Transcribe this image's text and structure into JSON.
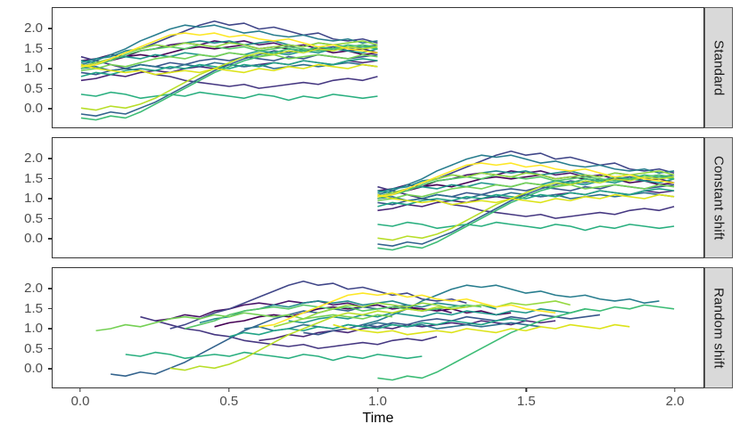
{
  "chart_data": {
    "type": "line",
    "title": "",
    "xlabel": "Time",
    "ylabel": "",
    "x_range": [
      0,
      2
    ],
    "x_ticks": [
      0.0,
      0.5,
      1.0,
      1.5,
      2.0
    ],
    "x_tick_labels": [
      "0.0",
      "0.5",
      "1.0",
      "1.5",
      "2.0"
    ],
    "y_ticks": [
      2.0,
      1.5,
      1.0,
      0.5,
      0.0
    ],
    "y_tick_labels": [
      "2.0",
      "1.5",
      "1.0",
      "0.5",
      "0.0"
    ],
    "grid": "off",
    "legend": "none",
    "facet_labels": [
      "Standard",
      "Constant shift",
      "Random shift"
    ],
    "x_step": 0.05,
    "series_colors": [
      "#440154",
      "#481467",
      "#482677",
      "#453781",
      "#404688",
      "#39568C",
      "#33638D",
      "#2D708E",
      "#287D8E",
      "#238A8D",
      "#1F968B",
      "#20A386",
      "#29AF7F",
      "#3CBC75",
      "#56C667",
      "#75D054",
      "#95D840",
      "#B8DE29",
      "#DCE319",
      "#FDE725"
    ],
    "base_series": [
      [
        1.05,
        1.15,
        1.2,
        1.3,
        1.35,
        1.3,
        1.4,
        1.5,
        1.55,
        1.5,
        1.55,
        1.6,
        1.5,
        1.55,
        1.5,
        1.45,
        1.5,
        1.4,
        1.45,
        1.35,
        1.4
      ],
      [
        1.2,
        1.25,
        1.35,
        1.3,
        1.45,
        1.5,
        1.6,
        1.65,
        1.6,
        1.7,
        1.65,
        1.7,
        1.6,
        1.65,
        1.55,
        1.6,
        1.5,
        1.55,
        1.45,
        1.5,
        1.4
      ],
      [
        0.7,
        0.75,
        0.85,
        0.8,
        0.9,
        0.95,
        0.9,
        1.0,
        1.05,
        1.0,
        1.1,
        1.05,
        1.1,
        1.15,
        1.1,
        1.2,
        1.15,
        1.1,
        1.2,
        1.15,
        1.2
      ],
      [
        1.3,
        1.2,
        1.1,
        1.0,
        0.95,
        0.85,
        0.8,
        0.7,
        0.65,
        0.6,
        0.55,
        0.6,
        0.5,
        0.55,
        0.6,
        0.65,
        0.6,
        0.7,
        0.75,
        0.7,
        0.8
      ],
      [
        1.0,
        1.1,
        1.25,
        1.4,
        1.5,
        1.65,
        1.8,
        1.95,
        2.1,
        2.2,
        2.1,
        2.15,
        2.0,
        2.05,
        1.95,
        1.85,
        1.9,
        1.75,
        1.7,
        1.75,
        1.65
      ],
      [
        0.9,
        0.85,
        0.95,
        1.0,
        1.1,
        1.05,
        1.15,
        1.1,
        1.2,
        1.25,
        1.2,
        1.3,
        1.25,
        1.2,
        1.3,
        1.25,
        1.35,
        1.3,
        1.25,
        1.3,
        1.35
      ],
      [
        -0.15,
        -0.2,
        -0.1,
        -0.15,
        0.0,
        0.15,
        0.35,
        0.55,
        0.75,
        0.95,
        1.1,
        1.25,
        1.35,
        1.45,
        1.4,
        1.5,
        1.45,
        1.55,
        1.5,
        1.55,
        1.6
      ],
      [
        1.0,
        1.05,
        0.95,
        1.0,
        1.1,
        1.05,
        1.0,
        1.1,
        1.05,
        1.15,
        1.1,
        1.05,
        1.1,
        1.0,
        1.05,
        1.1,
        1.05,
        1.1,
        1.15,
        1.1,
        1.05
      ],
      [
        1.1,
        1.2,
        1.35,
        1.5,
        1.7,
        1.85,
        2.0,
        2.1,
        2.05,
        2.1,
        2.0,
        1.9,
        1.95,
        1.85,
        1.8,
        1.85,
        1.75,
        1.7,
        1.75,
        1.65,
        1.7
      ],
      [
        1.15,
        1.25,
        1.3,
        1.45,
        1.5,
        1.6,
        1.55,
        1.65,
        1.7,
        1.65,
        1.7,
        1.6,
        1.65,
        1.7,
        1.6,
        1.55,
        1.65,
        1.6,
        1.55,
        1.6,
        1.5
      ],
      [
        1.2,
        1.15,
        1.25,
        1.3,
        1.25,
        1.35,
        1.3,
        1.4,
        1.35,
        1.3,
        1.4,
        1.35,
        1.45,
        1.4,
        1.35,
        1.45,
        1.4,
        1.5,
        1.45,
        1.4,
        1.5
      ],
      [
        0.8,
        0.9,
        0.85,
        0.95,
        1.0,
        0.95,
        1.05,
        1.0,
        1.1,
        1.05,
        1.0,
        1.1,
        1.05,
        1.15,
        1.1,
        1.2,
        1.15,
        1.1,
        1.2,
        1.25,
        1.2
      ],
      [
        0.35,
        0.3,
        0.4,
        0.35,
        0.25,
        0.3,
        0.35,
        0.3,
        0.4,
        0.35,
        0.3,
        0.25,
        0.35,
        0.3,
        0.2,
        0.3,
        0.25,
        0.35,
        0.3,
        0.25,
        0.3
      ],
      [
        -0.25,
        -0.3,
        -0.2,
        -0.25,
        -0.1,
        0.1,
        0.3,
        0.5,
        0.7,
        0.9,
        1.05,
        1.2,
        1.3,
        1.4,
        1.5,
        1.45,
        1.55,
        1.5,
        1.6,
        1.55,
        1.5
      ],
      [
        1.0,
        1.1,
        1.2,
        1.35,
        1.45,
        1.5,
        1.55,
        1.5,
        1.6,
        1.55,
        1.5,
        1.55,
        1.45,
        1.5,
        1.55,
        1.5,
        1.45,
        1.5,
        1.55,
        1.6,
        1.55
      ],
      [
        0.95,
        1.0,
        1.1,
        1.05,
        1.15,
        1.25,
        1.3,
        1.25,
        1.35,
        1.3,
        1.4,
        1.35,
        1.3,
        1.35,
        1.25,
        1.3,
        1.35,
        1.3,
        1.25,
        1.35,
        1.3
      ],
      [
        1.05,
        1.15,
        1.25,
        1.4,
        1.5,
        1.6,
        1.55,
        1.65,
        1.6,
        1.55,
        1.65,
        1.6,
        1.5,
        1.55,
        1.6,
        1.55,
        1.65,
        1.6,
        1.65,
        1.7,
        1.6
      ],
      [
        0.0,
        -0.05,
        0.05,
        0.0,
        0.1,
        0.25,
        0.45,
        0.65,
        0.85,
        1.0,
        1.15,
        1.3,
        1.4,
        1.35,
        1.45,
        1.4,
        1.5,
        1.45,
        1.55,
        1.5,
        1.55
      ],
      [
        1.1,
        1.0,
        0.95,
        0.9,
        0.95,
        0.85,
        0.9,
        0.95,
        0.9,
        1.0,
        0.95,
        0.9,
        1.0,
        0.95,
        1.05,
        1.0,
        1.1,
        1.05,
        1.0,
        1.1,
        1.05
      ],
      [
        1.05,
        1.1,
        1.25,
        1.4,
        1.55,
        1.7,
        1.85,
        1.9,
        1.85,
        1.9,
        1.8,
        1.85,
        1.75,
        1.7,
        1.75,
        1.65,
        1.55,
        1.6,
        1.5,
        1.45,
        1.4
      ]
    ],
    "panels": [
      {
        "label": "Standard",
        "offsets": [
          0,
          0,
          0,
          0,
          0,
          0,
          0,
          0,
          0,
          0,
          0,
          0,
          0,
          0,
          0,
          0,
          0,
          0,
          0,
          0
        ]
      },
      {
        "label": "Constant shift",
        "offsets": [
          1,
          1,
          1,
          1,
          1,
          1,
          1,
          1,
          1,
          1,
          1,
          1,
          1,
          1,
          1,
          1,
          1,
          1,
          1,
          1
        ]
      },
      {
        "label": "Random shift",
        "offsets": [
          0.45,
          0.25,
          0.6,
          0.2,
          0.3,
          0.75,
          0.1,
          0.55,
          0.95,
          0.4,
          0.7,
          0.5,
          0.15,
          1.0,
          0.35,
          0.05,
          0.65,
          0.3,
          0.85,
          0.6
        ]
      }
    ]
  }
}
